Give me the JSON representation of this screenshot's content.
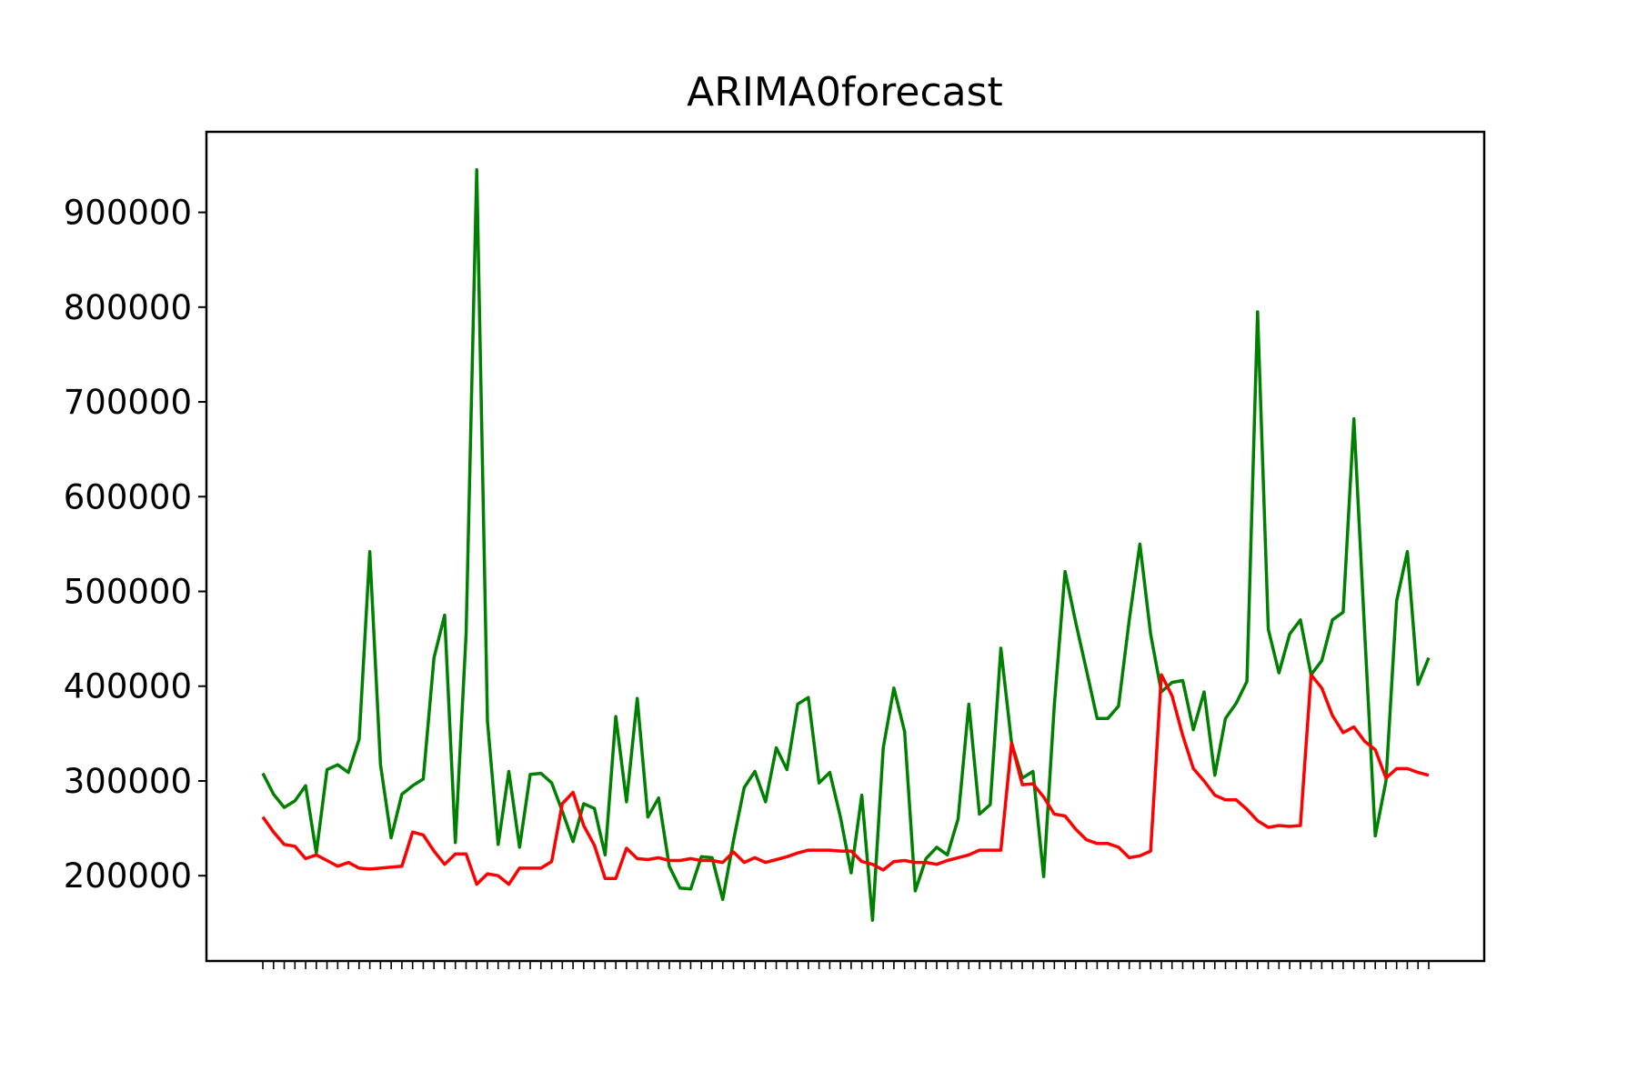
{
  "chart_data": {
    "type": "line",
    "title": "ARIMA0forecast",
    "xlabel": "",
    "ylabel": "",
    "ylim": [
      110000,
      985000
    ],
    "yticks": [
      200000,
      300000,
      400000,
      500000,
      600000,
      700000,
      800000,
      900000
    ],
    "ytick_labels": [
      "200000",
      "300000",
      "400000",
      "500000",
      "600000",
      "700000",
      "800000",
      "900000"
    ],
    "x_tick_labels_note": "overlapping date tick labels, illegible",
    "x_count": 110,
    "grid": false,
    "series": [
      {
        "color": "#008000",
        "values": [
          308000,
          286000,
          272000,
          279000,
          295000,
          224000,
          312000,
          317000,
          309000,
          344000,
          542000,
          317000,
          240000,
          286000,
          295000,
          302000,
          430000,
          475000,
          235000,
          455000,
          945000,
          363000,
          233000,
          310000,
          230000,
          307000,
          308000,
          298000,
          268000,
          236000,
          276000,
          271000,
          222000,
          368000,
          278000,
          387000,
          262000,
          282000,
          210000,
          187000,
          186000,
          220000,
          219000,
          175000,
          237000,
          293000,
          310000,
          278000,
          335000,
          312000,
          381000,
          388000,
          298000,
          309000,
          262000,
          203000,
          285000,
          153000,
          335000,
          398000,
          352000,
          184000,
          218000,
          230000,
          222000,
          260000,
          381000,
          265000,
          275000,
          440000,
          340000,
          303000,
          310000,
          199000,
          380000,
          521000,
          467000,
          417000,
          366000,
          366000,
          379000,
          470000,
          550000,
          455000,
          394000,
          404000,
          406000,
          354000,
          394000,
          306000,
          366000,
          382000,
          405000,
          795000,
          460000,
          414000,
          455000,
          470000,
          412000,
          427000,
          470000,
          478000,
          682000,
          460000,
          242000,
          300000,
          490000,
          542000,
          402000,
          430000
        ]
      },
      {
        "color": "#ff0000",
        "values": [
          262000,
          246000,
          233000,
          231000,
          218000,
          222000,
          216000,
          210000,
          214000,
          208000,
          207000,
          208000,
          209000,
          210000,
          246000,
          243000,
          226000,
          212000,
          223000,
          223000,
          191000,
          202000,
          200000,
          191000,
          208000,
          208000,
          208000,
          215000,
          276000,
          288000,
          253000,
          232000,
          197000,
          197000,
          229000,
          218000,
          217000,
          219000,
          216000,
          216000,
          218000,
          216000,
          216000,
          214000,
          225000,
          214000,
          219000,
          214000,
          217000,
          220000,
          224000,
          227000,
          227000,
          227000,
          226000,
          226000,
          215000,
          212000,
          206000,
          215000,
          216000,
          214000,
          214000,
          212000,
          216000,
          219000,
          222000,
          227000,
          227000,
          227000,
          340000,
          296000,
          297000,
          283000,
          265000,
          263000,
          249000,
          238000,
          234000,
          234000,
          230000,
          219000,
          221000,
          226000,
          412000,
          390000,
          348000,
          313000,
          300000,
          285000,
          280000,
          280000,
          270000,
          258000,
          251000,
          253000,
          252000,
          253000,
          412000,
          398000,
          369000,
          351000,
          357000,
          342000,
          333000,
          303000,
          313000,
          313000,
          309000,
          306000
        ]
      }
    ]
  }
}
